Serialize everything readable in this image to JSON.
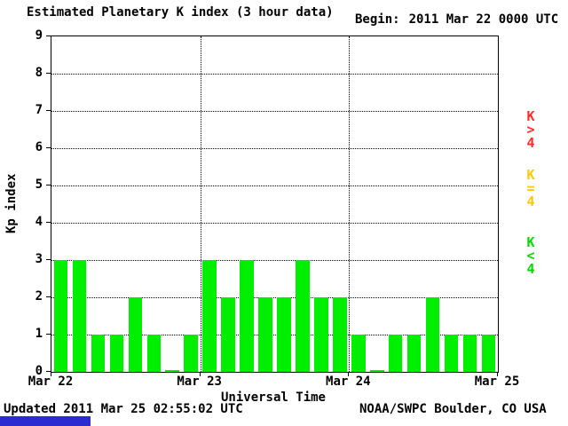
{
  "page": {
    "background": "#ffffff"
  },
  "chart_data": {
    "type": "bar",
    "title": "Estimated Planetary K index (3 hour data)",
    "begin_label": "Begin:",
    "begin_value": "2011 Mar 22 0000 UTC",
    "xlabel": "Universal Time",
    "ylabel": "Kp index",
    "ylim": [
      0,
      9
    ],
    "yticks": [
      0,
      1,
      2,
      3,
      4,
      5,
      6,
      7,
      8,
      9
    ],
    "x_day_labels": [
      "Mar 22",
      "Mar 23",
      "Mar 24",
      "Mar 25"
    ],
    "bar_interval_hours": 3,
    "values": [
      3,
      3,
      1,
      1,
      2,
      1,
      0,
      1,
      3,
      2,
      3,
      2,
      2,
      3,
      2,
      2,
      1,
      0,
      1,
      1,
      2,
      1,
      1,
      1
    ],
    "bar_color": "#00ee00",
    "grid": "dotted",
    "legend": [
      {
        "label": "K>4",
        "color": "#ff2a2a"
      },
      {
        "label": "K=4",
        "color": "#ffc800"
      },
      {
        "label": "K<4",
        "color": "#00d800"
      }
    ],
    "legend_position": "right-vertical"
  },
  "footer": {
    "updated": "Updated 2011 Mar 25 02:55:02 UTC",
    "credit": "NOAA/SWPC Boulder, CO USA"
  },
  "decor": {
    "strip_color": "#2b2bd0"
  }
}
